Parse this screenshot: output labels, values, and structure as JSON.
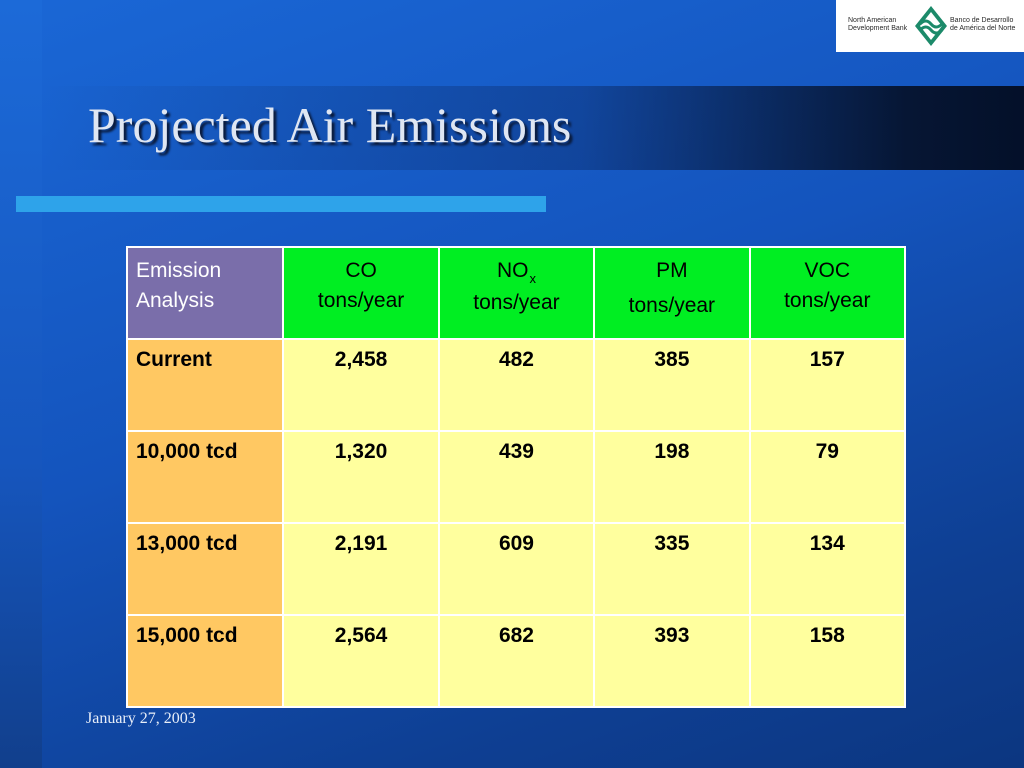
{
  "logo": {
    "name_en_line1": "North American",
    "name_en_line2": "Development Bank",
    "name_es_line1": "Banco de Desarrollo",
    "name_es_line2": "de América del Norte"
  },
  "slide": {
    "title": "Projected Air Emissions",
    "footer_date": "January 27, 2003"
  },
  "table": {
    "header": {
      "corner_line1": "Emission",
      "corner_line2": "Analysis",
      "columns": [
        {
          "line1": "CO",
          "line2": "tons/year"
        },
        {
          "line1": "NO",
          "sub": "x",
          "line2": "tons/year"
        },
        {
          "line1": "PM",
          "line2": "tons/year"
        },
        {
          "line1": "VOC",
          "line2": "tons/year"
        }
      ]
    },
    "rows": [
      {
        "label": "Current",
        "values": [
          "2,458",
          "482",
          "385",
          "157"
        ]
      },
      {
        "label": "10,000 tcd",
        "values": [
          "1,320",
          "439",
          "198",
          "79"
        ]
      },
      {
        "label": "13,000 tcd",
        "values": [
          "2,191",
          "609",
          "335",
          "134"
        ]
      },
      {
        "label": "15,000 tcd",
        "values": [
          "2,564",
          "682",
          "393",
          "158"
        ]
      }
    ]
  },
  "colors": {
    "header_green": "#00ee22",
    "corner_purple": "#7a6eaa",
    "rowhead_orange": "#ffc862",
    "cell_yellow": "#ffff9e",
    "accent_rule": "#2ea3ea"
  }
}
